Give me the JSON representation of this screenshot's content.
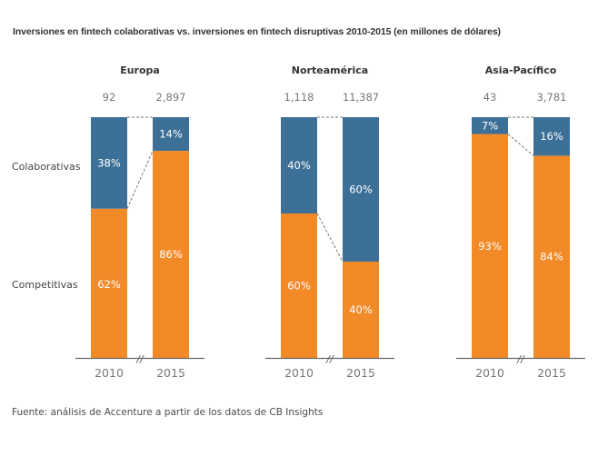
{
  "chart_data": {
    "type": "bar",
    "stacked": true,
    "percent_stacked": true,
    "title": "Inversiones en fintech colaborativas vs. inversiones en fintech disruptivas 2010-2015 (en millones de dólares)",
    "categories": [
      "2010",
      "2015"
    ],
    "series_names": [
      "Colaborativas",
      "Competitivas"
    ],
    "colors": {
      "Colaborativas": "#3d7096",
      "Competitivas": "#f28a27"
    },
    "ylim": [
      0,
      100
    ],
    "grid": false,
    "axis_break_marker": "//",
    "panels": [
      {
        "title": "Europa",
        "totals": [
          "92",
          "2,897"
        ],
        "series": [
          {
            "name": "Colaborativas",
            "values": [
              38,
              14
            ],
            "labels": [
              "38%",
              "14%"
            ]
          },
          {
            "name": "Competitivas",
            "values": [
              62,
              86
            ],
            "labels": [
              "62%",
              "86%"
            ]
          }
        ]
      },
      {
        "title": "Norteamérica",
        "totals": [
          "1,118",
          "11,387"
        ],
        "series": [
          {
            "name": "Colaborativas",
            "values": [
              40,
              60
            ],
            "labels": [
              "40%",
              "60%"
            ]
          },
          {
            "name": "Competitivas",
            "values": [
              60,
              40
            ],
            "labels": [
              "60%",
              "40%"
            ]
          }
        ]
      },
      {
        "title": "Asia-Pacífico",
        "totals": [
          "43",
          "3,781"
        ],
        "series": [
          {
            "name": "Colaborativas",
            "values": [
              7,
              16
            ],
            "labels": [
              "7%",
              "16%"
            ]
          },
          {
            "name": "Competitivas",
            "values": [
              93,
              84
            ],
            "labels": [
              "93%",
              "84%"
            ]
          }
        ]
      }
    ],
    "row_labels": [
      "Colaborativas",
      "Competitivas"
    ],
    "source": "Fuente: análisis de Accenture a partir de los datos de CB Insights"
  }
}
